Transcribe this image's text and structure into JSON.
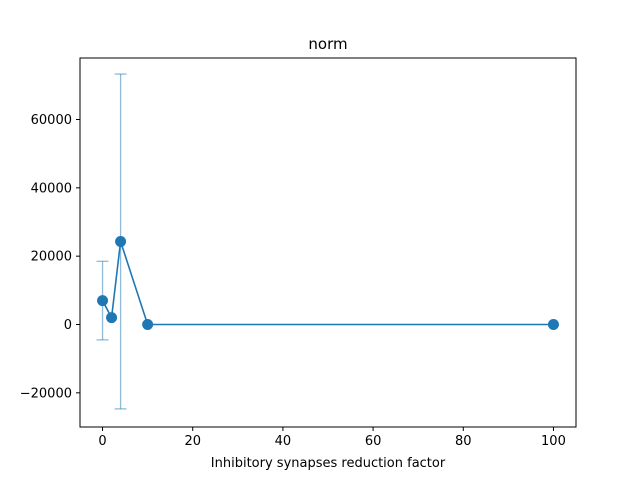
{
  "chart_data": {
    "type": "scatter",
    "title": "norm",
    "xlabel": "Inhibitory synapses reduction factor",
    "ylabel": "",
    "xlim": [
      -5,
      105
    ],
    "ylim": [
      -30000,
      78000
    ],
    "xticks": [
      0,
      20,
      40,
      60,
      80,
      100
    ],
    "yticks": [
      -20000,
      0,
      20000,
      40000,
      60000
    ],
    "xtick_labels": [
      "0",
      "20",
      "40",
      "60",
      "80",
      "100"
    ],
    "ytick_labels": [
      "−20000",
      "0",
      "20000",
      "40000",
      "60000"
    ],
    "grid": false,
    "series": [
      {
        "color": "#1f77b4",
        "x": [
          0,
          2,
          4,
          10,
          100
        ],
        "y": [
          7000,
          2000,
          24300,
          0,
          0
        ],
        "yerr": [
          11500,
          0,
          49000,
          0,
          0
        ]
      }
    ]
  }
}
